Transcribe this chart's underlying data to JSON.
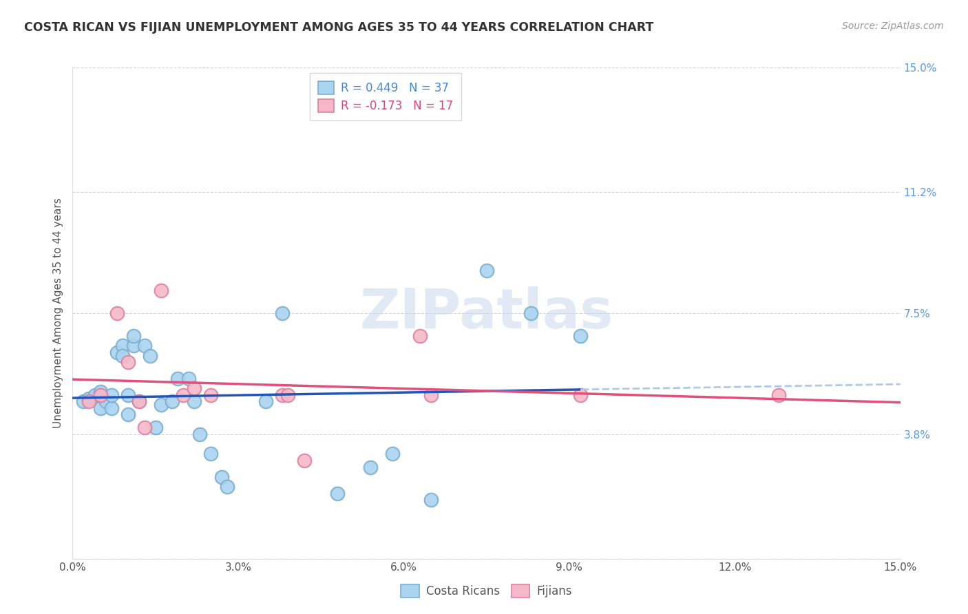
{
  "title": "COSTA RICAN VS FIJIAN UNEMPLOYMENT AMONG AGES 35 TO 44 YEARS CORRELATION CHART",
  "source": "Source: ZipAtlas.com",
  "ylabel": "Unemployment Among Ages 35 to 44 years",
  "xlim": [
    0.0,
    0.15
  ],
  "ylim": [
    0.0,
    0.15
  ],
  "xtick_positions": [
    0.0,
    0.03,
    0.06,
    0.09,
    0.12,
    0.15
  ],
  "xtick_labels": [
    "0.0%",
    "3.0%",
    "6.0%",
    "9.0%",
    "12.0%",
    "15.0%"
  ],
  "ytick_vals": [
    0.0,
    0.038,
    0.075,
    0.112,
    0.15
  ],
  "right_ytick_vals": [
    0.038,
    0.075,
    0.112,
    0.15
  ],
  "right_ytick_labels": [
    "3.8%",
    "7.5%",
    "11.2%",
    "15.0%"
  ],
  "costa_rican_x": [
    0.002,
    0.003,
    0.004,
    0.005,
    0.005,
    0.006,
    0.007,
    0.007,
    0.008,
    0.009,
    0.009,
    0.01,
    0.01,
    0.011,
    0.011,
    0.012,
    0.013,
    0.014,
    0.015,
    0.016,
    0.018,
    0.019,
    0.021,
    0.022,
    0.023,
    0.025,
    0.027,
    0.028,
    0.035,
    0.038,
    0.048,
    0.054,
    0.058,
    0.065,
    0.075,
    0.083,
    0.092
  ],
  "costa_rican_y": [
    0.048,
    0.049,
    0.05,
    0.051,
    0.046,
    0.048,
    0.046,
    0.05,
    0.063,
    0.065,
    0.062,
    0.05,
    0.044,
    0.065,
    0.068,
    0.048,
    0.065,
    0.062,
    0.04,
    0.047,
    0.048,
    0.055,
    0.055,
    0.048,
    0.038,
    0.032,
    0.025,
    0.022,
    0.048,
    0.075,
    0.02,
    0.028,
    0.032,
    0.018,
    0.088,
    0.075,
    0.068
  ],
  "fijian_x": [
    0.003,
    0.005,
    0.008,
    0.01,
    0.012,
    0.013,
    0.016,
    0.02,
    0.022,
    0.025,
    0.038,
    0.039,
    0.042,
    0.063,
    0.065,
    0.092,
    0.128
  ],
  "fijian_y": [
    0.048,
    0.05,
    0.075,
    0.06,
    0.048,
    0.04,
    0.082,
    0.05,
    0.052,
    0.05,
    0.05,
    0.05,
    0.03,
    0.068,
    0.05,
    0.05,
    0.05
  ],
  "costa_rican_color": "#aad4f0",
  "costa_rican_edge": "#7aaed0",
  "fijian_color": "#f5b8c8",
  "fijian_edge": "#e080a0",
  "trend_cr_solid_color": "#2255bb",
  "trend_cr_dash_color": "#b0c8e8",
  "trend_fj_color": "#e0507a",
  "r_cr": 0.449,
  "n_cr": 37,
  "r_fj": -0.173,
  "n_fj": 17,
  "watermark": "ZIPatlas",
  "background_color": "#ffffff",
  "grid_color": "#d0d0d0"
}
